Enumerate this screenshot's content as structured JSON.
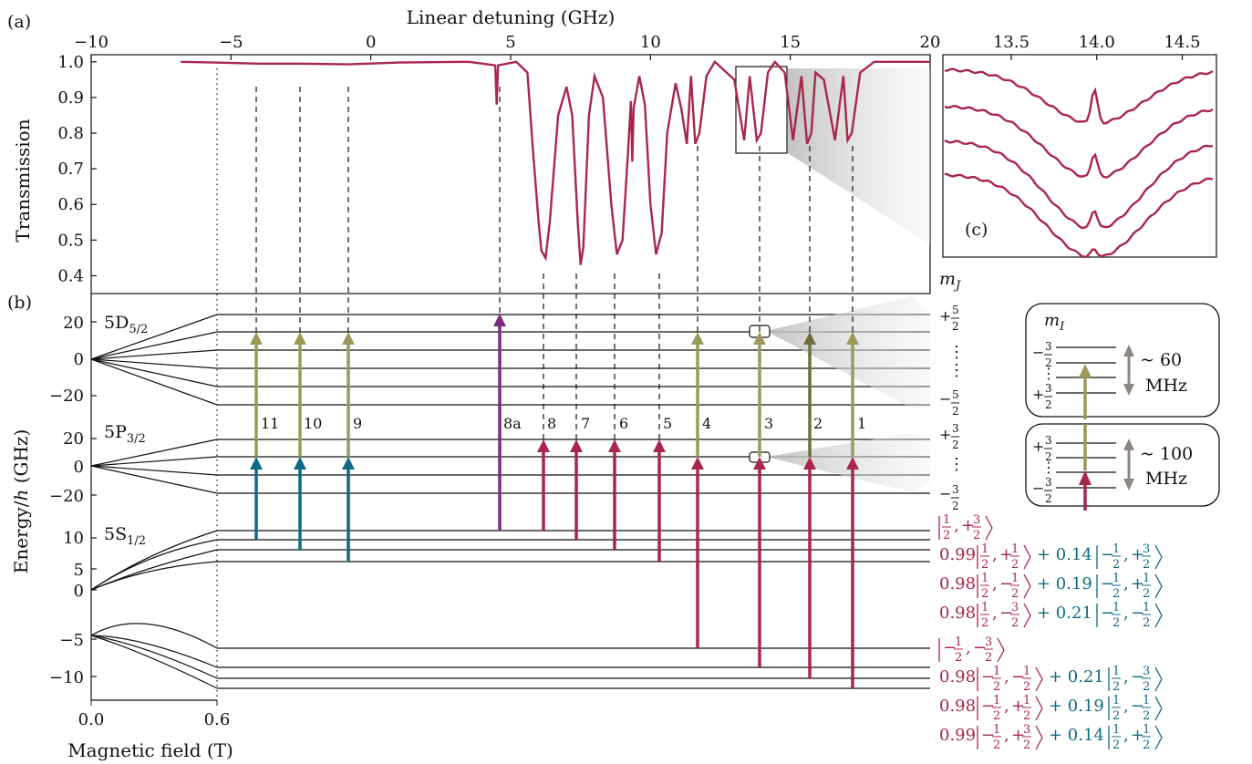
{
  "panel_labels": {
    "a": "(a)",
    "b": "(b)",
    "c": "(c)"
  },
  "colors": {
    "trace": "#a8274a",
    "red": "#a8274a",
    "teal": "#0f6a84",
    "olive": "#9a9a5a",
    "olive_dark": "#6e6e3c",
    "purple": "#7a2d7e",
    "grey_arrow": "#8e8680",
    "shade": "#d8d8d8"
  },
  "chart_data": [
    {
      "type": "line",
      "panel": "a",
      "xlabel": "Linear detuning (GHz)",
      "ylabel": "Transmission",
      "xlim": [
        -10,
        20
      ],
      "ylim": [
        0.35,
        1.02
      ],
      "xticks": [
        "−10",
        "−5",
        "0",
        "5",
        "10",
        "15",
        "20"
      ],
      "yticks": [
        "1.0",
        "0.9",
        "0.8",
        "0.7",
        "0.6",
        "0.5",
        "0.4"
      ],
      "series_points": {
        "x": [
          -6.8,
          -5.6,
          -4.0,
          -2.5,
          -0.8,
          1.0,
          3.5,
          4.45,
          4.5,
          4.55,
          5.2,
          5.6,
          5.8,
          6.0,
          6.1,
          6.25,
          6.4,
          6.7,
          7.0,
          7.2,
          7.4,
          7.5,
          7.6,
          7.8,
          8.0,
          8.3,
          8.6,
          8.8,
          9.0,
          9.2,
          9.3,
          9.35,
          9.4,
          9.6,
          9.8,
          10.0,
          10.2,
          10.4,
          10.6,
          10.9,
          11.1,
          11.3,
          11.45,
          11.6,
          11.75,
          12.0,
          12.3,
          13.0,
          13.35,
          13.55,
          13.8,
          13.95,
          14.2,
          14.45,
          14.8,
          15.1,
          15.4,
          15.6,
          15.75,
          15.9,
          16.2,
          16.6,
          16.9,
          17.05,
          17.2,
          17.5,
          18.0,
          20.0
        ],
        "y": [
          1.0,
          0.998,
          0.995,
          0.995,
          0.993,
          0.998,
          1.0,
          0.99,
          0.88,
          0.99,
          1.0,
          0.97,
          0.75,
          0.55,
          0.47,
          0.45,
          0.55,
          0.85,
          0.93,
          0.85,
          0.55,
          0.43,
          0.48,
          0.85,
          0.96,
          0.9,
          0.6,
          0.46,
          0.5,
          0.75,
          0.89,
          0.72,
          0.87,
          0.96,
          0.88,
          0.6,
          0.46,
          0.52,
          0.8,
          0.94,
          0.87,
          0.77,
          0.96,
          0.77,
          0.8,
          0.96,
          1.0,
          0.95,
          0.78,
          0.96,
          0.78,
          0.8,
          0.97,
          1.0,
          0.97,
          0.78,
          0.96,
          0.77,
          0.8,
          0.97,
          0.95,
          0.78,
          0.96,
          0.78,
          0.8,
          0.97,
          1.0,
          1.0
        ]
      }
    },
    {
      "type": "line",
      "panel": "c",
      "xticks": [
        "13.5",
        "14.0",
        "14.5"
      ],
      "xlim": [
        13.1,
        14.7
      ],
      "series_count": 4
    },
    {
      "type": "diagram",
      "panel": "b",
      "xlabel": "Magnetic field (T)",
      "ylabel": "Energy/h (GHz)",
      "xticks": [
        "0.0",
        "0.6"
      ],
      "mj_header": "mJ",
      "mi_header": "mI",
      "states": {
        "d52": {
          "label": "5D",
          "sub": "5/2",
          "yticks": [
            "20",
            "0",
            "−20"
          ]
        },
        "p32": {
          "label": "5P",
          "sub": "3/2",
          "yticks": [
            "20",
            "0",
            "−20"
          ]
        },
        "s12": {
          "label": "5S",
          "sub": "1/2",
          "yticks": [
            "10",
            "5",
            "0",
            "−5",
            "−10"
          ]
        }
      },
      "transition_numbers": [
        "11",
        "10",
        "9",
        "8a",
        "8",
        "7",
        "6",
        "5",
        "4",
        "3",
        "2",
        "1"
      ],
      "inset_d": {
        "mi_top": "−3/2",
        "mi_bottom": "+3/2",
        "splitting": "~ 60",
        "unit": "MHz"
      },
      "inset_p": {
        "mi_top": "+3/2",
        "mi_bottom": "−3/2",
        "splitting": "~ 100",
        "unit": "MHz"
      },
      "state_labels": [
        {
          "coef": "",
          "k1": "1/2",
          "k2": "+3/2",
          "tail": ""
        },
        {
          "coef": "0.99",
          "k1": "1/2",
          "k2": "+1/2",
          "tail": "+ 0.14",
          "t1": "−1/2",
          "t2": "+3/2"
        },
        {
          "coef": "0.98",
          "k1": "1/2",
          "k2": "−1/2",
          "tail": "+ 0.19",
          "t1": "−1/2",
          "t2": "+1/2"
        },
        {
          "coef": "0.98",
          "k1": "1/2",
          "k2": "−3/2",
          "tail": "+ 0.21",
          "t1": "−1/2",
          "t2": "−1/2"
        },
        {
          "coef": "",
          "k1": "−1/2",
          "k2": "−3/2",
          "tail": ""
        },
        {
          "coef": "0.98",
          "k1": "−1/2",
          "k2": "−1/2",
          "tail": "+ 0.21",
          "t1": "1/2",
          "t2": "−3/2"
        },
        {
          "coef": "0.98",
          "k1": "−1/2",
          "k2": "+1/2",
          "tail": "+ 0.19",
          "t1": "1/2",
          "t2": "−1/2"
        },
        {
          "coef": "0.99",
          "k1": "−1/2",
          "k2": "+3/2",
          "tail": "+ 0.14",
          "t1": "1/2",
          "t2": "+1/2"
        }
      ]
    }
  ]
}
